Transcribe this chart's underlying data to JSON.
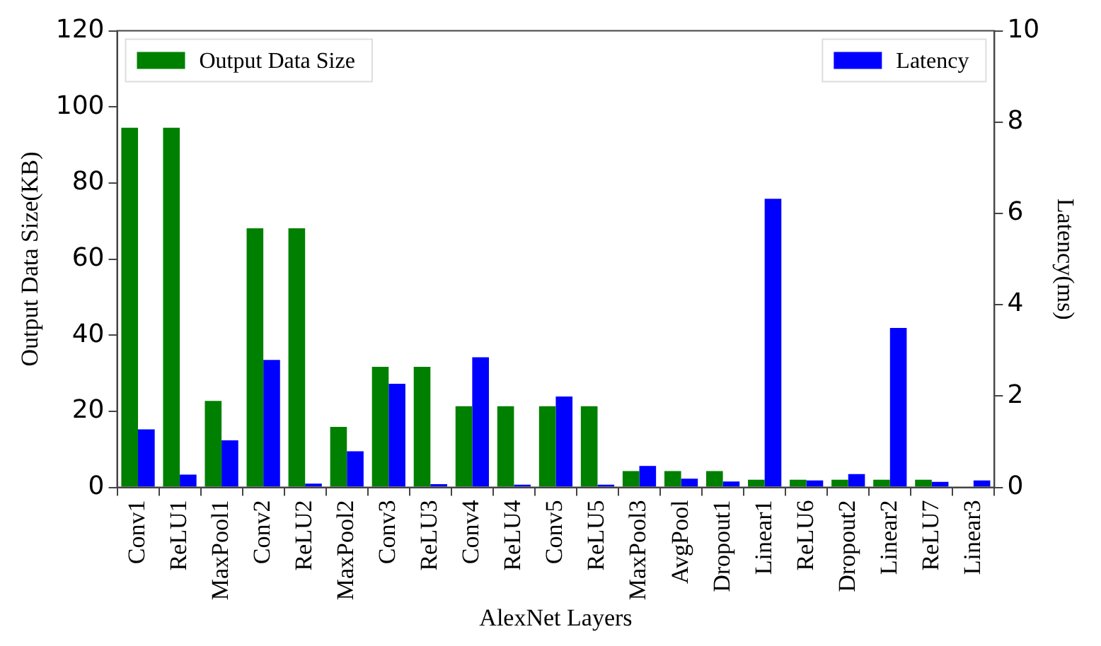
{
  "chart_data": {
    "type": "bar",
    "xlabel": "AlexNet Layers",
    "ylabel": "Output Data Size(KB)",
    "y2label": "Latency(ms)",
    "categories": [
      "Conv1",
      "ReLU1",
      "MaxPool1",
      "Conv2",
      "ReLU2",
      "MaxPool2",
      "Conv3",
      "ReLU3",
      "Conv4",
      "ReLU4",
      "Conv5",
      "ReLU5",
      "MaxPool3",
      "AvgPool",
      "Dropout1",
      "Linear1",
      "ReLU6",
      "Dropout2",
      "Linear2",
      "ReLU7",
      "Linear3"
    ],
    "series": [
      {
        "name": "Output Data Size",
        "color": "#008000",
        "values": [
          94.5,
          94.5,
          22.7,
          68.1,
          68.1,
          15.9,
          31.7,
          31.7,
          21.3,
          21.3,
          21.3,
          21.3,
          4.3,
          4.3,
          4.3,
          2,
          2,
          2,
          2,
          2,
          0
        ]
      },
      {
        "name": "Latency",
        "color": "#0000ff",
        "axis": "y2",
        "values": [
          1.27,
          0.28,
          1.03,
          2.79,
          0.08,
          0.79,
          2.27,
          0.07,
          2.85,
          0.06,
          1.99,
          0.06,
          0.47,
          0.19,
          0.13,
          6.32,
          0.15,
          0.29,
          3.49,
          0.12,
          0.15
        ]
      }
    ],
    "ylim": [
      0,
      120
    ],
    "yticks": [
      0,
      20,
      40,
      60,
      80,
      100,
      120
    ],
    "y2lim": [
      0,
      10
    ],
    "y2ticks": [
      0,
      2,
      4,
      6,
      8,
      10
    ],
    "grid": false,
    "legend": "top"
  }
}
